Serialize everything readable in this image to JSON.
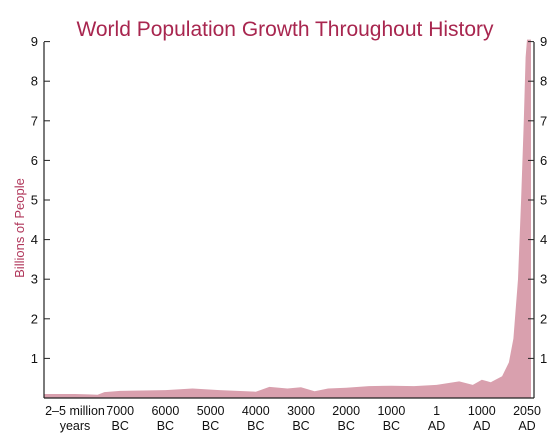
{
  "chart_data": {
    "type": "area",
    "title": "World Population Growth Throughout History",
    "xlabel": "",
    "ylabel": "Billions of People",
    "ylim": [
      0,
      9
    ],
    "yticks": [
      1,
      2,
      3,
      4,
      5,
      6,
      7,
      8,
      9
    ],
    "grid": false,
    "categories": [
      [
        "2–5 million",
        "years"
      ],
      [
        "7000",
        "BC"
      ],
      [
        "6000",
        "BC"
      ],
      [
        "5000",
        "BC"
      ],
      [
        "4000",
        "BC"
      ],
      [
        "3000",
        "BC"
      ],
      [
        "2000",
        "BC"
      ],
      [
        "1000",
        "BC"
      ],
      [
        "1",
        "AD"
      ],
      [
        "1000",
        "AD"
      ],
      [
        "2050",
        "AD"
      ]
    ],
    "series": [
      {
        "name": "",
        "color": "#d9a0ae",
        "points": [
          [
            0,
            0.1
          ],
          [
            0.3,
            0.09
          ],
          [
            0.5,
            0.08
          ],
          [
            0.65,
            0.15
          ],
          [
            1,
            0.18
          ],
          [
            2,
            0.2
          ],
          [
            2.6,
            0.24
          ],
          [
            3.2,
            0.2
          ],
          [
            4,
            0.16
          ],
          [
            4.3,
            0.28
          ],
          [
            4.7,
            0.24
          ],
          [
            5,
            0.27
          ],
          [
            5.3,
            0.17
          ],
          [
            5.6,
            0.24
          ],
          [
            6,
            0.26
          ],
          [
            6.5,
            0.3
          ],
          [
            7,
            0.31
          ],
          [
            7.5,
            0.3
          ],
          [
            8,
            0.33
          ],
          [
            8.5,
            0.42
          ],
          [
            8.8,
            0.33
          ],
          [
            9,
            0.46
          ],
          [
            9.2,
            0.4
          ],
          [
            9.45,
            0.55
          ],
          [
            9.6,
            0.9
          ],
          [
            9.7,
            1.5
          ],
          [
            9.8,
            3.0
          ],
          [
            9.87,
            5.0
          ],
          [
            9.93,
            7.0
          ],
          [
            9.97,
            8.6
          ],
          [
            10,
            9.05
          ]
        ]
      }
    ]
  }
}
